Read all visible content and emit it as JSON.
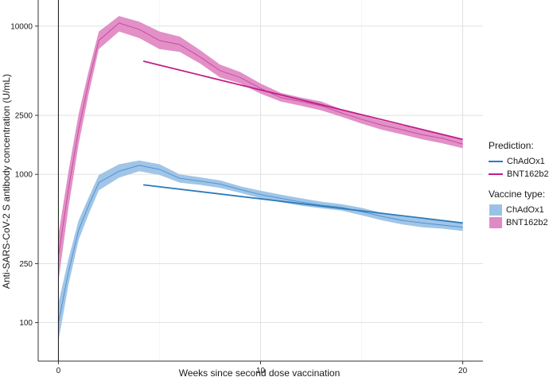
{
  "chart_data": {
    "type": "line",
    "xlabel": "Weeks since second dose vaccination",
    "ylabel": "Anti-SARS-CoV-2 S antibody concentration (U/mL)",
    "x_scale": "linear",
    "y_scale": "log",
    "xlim": [
      -1,
      21
    ],
    "ylim": [
      55,
      15000
    ],
    "x_ticks": [
      0,
      10,
      20
    ],
    "y_ticks": [
      100,
      250,
      1000,
      2500,
      10000
    ],
    "grid": true,
    "legend_position": "right",
    "series": [
      {
        "name": "ChAdOx1",
        "group": "Vaccine type",
        "style": "band",
        "color": "#4a8fd0",
        "fill": "#9bc2e6",
        "x": [
          0,
          0.5,
          1,
          1.5,
          2,
          3,
          4,
          5,
          6,
          7,
          8,
          9,
          10,
          11,
          12,
          13,
          14,
          15,
          16,
          17,
          18,
          19,
          20
        ],
        "y": [
          100,
          220,
          420,
          620,
          880,
          1050,
          1150,
          1080,
          940,
          900,
          860,
          790,
          730,
          690,
          650,
          620,
          600,
          560,
          520,
          490,
          470,
          455,
          440
        ],
        "lower": [
          75,
          180,
          360,
          540,
          780,
          950,
          1050,
          990,
          880,
          850,
          810,
          750,
          690,
          650,
          615,
          590,
          570,
          530,
          490,
          460,
          440,
          430,
          415
        ],
        "upper": [
          135,
          270,
          490,
          700,
          990,
          1170,
          1240,
          1170,
          1000,
          955,
          910,
          830,
          775,
          730,
          690,
          655,
          630,
          595,
          550,
          520,
          500,
          485,
          465
        ]
      },
      {
        "name": "BNT162b2",
        "group": "Vaccine type",
        "style": "band",
        "color": "#c4479a",
        "fill": "#e08ac4",
        "x": [
          0,
          0.5,
          1,
          1.5,
          2,
          3,
          4,
          5,
          6,
          7,
          8,
          9,
          10,
          11,
          12,
          13,
          14,
          15,
          16,
          17,
          18,
          19,
          20
        ],
        "y": [
          280,
          800,
          2000,
          4200,
          8000,
          10500,
          9500,
          8000,
          7500,
          6200,
          5000,
          4500,
          3800,
          3300,
          3100,
          2900,
          2600,
          2350,
          2150,
          2000,
          1850,
          1750,
          1600
        ],
        "lower": [
          190,
          600,
          1600,
          3500,
          7000,
          9200,
          8300,
          7000,
          6700,
          5600,
          4500,
          4100,
          3500,
          3100,
          2900,
          2700,
          2450,
          2200,
          2000,
          1860,
          1720,
          1620,
          1500
        ],
        "upper": [
          390,
          1050,
          2550,
          5000,
          9200,
          11700,
          10700,
          9200,
          8500,
          6900,
          5500,
          4900,
          4100,
          3550,
          3300,
          3100,
          2750,
          2500,
          2300,
          2140,
          1980,
          1880,
          1700
        ]
      },
      {
        "name": "ChAdOx1",
        "group": "Prediction",
        "style": "line",
        "color": "#2b7bba",
        "x": [
          4.2,
          20
        ],
        "y": [
          850,
          470
        ]
      },
      {
        "name": "BNT162b2",
        "group": "Prediction",
        "style": "line",
        "color": "#c01d87",
        "x": [
          4.2,
          20
        ],
        "y": [
          5800,
          1720
        ]
      }
    ]
  },
  "legend": {
    "prediction_title": "Prediction:",
    "prediction_items": [
      {
        "label": "ChAdOx1",
        "color": "#2b7bba"
      },
      {
        "label": "BNT162b2",
        "color": "#c01d87"
      }
    ],
    "vaccine_title": "Vaccine type:",
    "vaccine_items": [
      {
        "label": "ChAdOx1",
        "color": "#9bc2e6"
      },
      {
        "label": "BNT162b2",
        "color": "#e08ac4"
      }
    ]
  }
}
